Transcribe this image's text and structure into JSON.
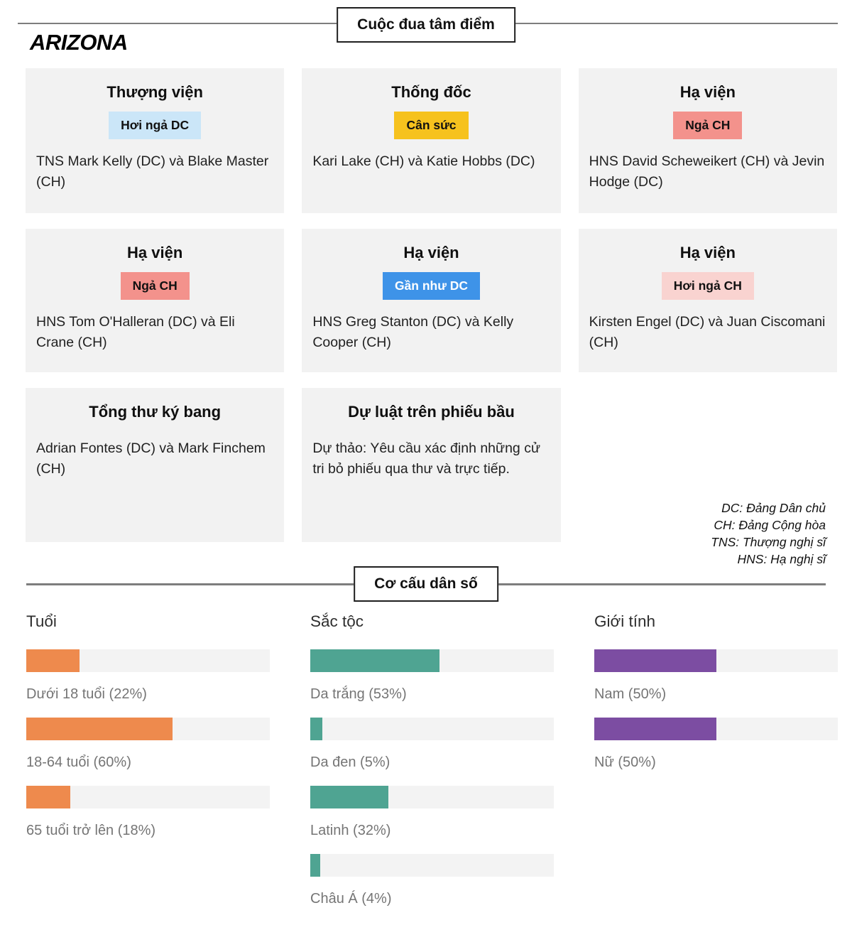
{
  "state": "ARIZONA",
  "races": {
    "title": "Cuộc đua tâm điểm",
    "cards": [
      {
        "title": "Thượng viện",
        "badge": {
          "label": "Hơi ngả DC",
          "bg": "#cbe6f8",
          "fg": "#111111"
        },
        "body": "TNS Mark Kelly (DC) và Blake Master (CH)"
      },
      {
        "title": "Thống đốc",
        "badge": {
          "label": "Cân sức",
          "bg": "#f6c21e",
          "fg": "#111111"
        },
        "body": "Kari Lake (CH) và Katie Hobbs (DC)"
      },
      {
        "title": "Hạ viện",
        "badge": {
          "label": "Ngả CH",
          "bg": "#f3928c",
          "fg": "#111111"
        },
        "body": "HNS David Scheweikert (CH) và Jevin Hodge (DC)"
      },
      {
        "title": "Hạ viện",
        "badge": {
          "label": "Ngả CH",
          "bg": "#f3928c",
          "fg": "#111111"
        },
        "body": "HNS Tom O'Halleran (DC) và Eli Crane (CH)"
      },
      {
        "title": "Hạ viện",
        "badge": {
          "label": "Gần như DC",
          "bg": "#3e93e8",
          "fg": "#ffffff"
        },
        "body": "HNS Greg Stanton (DC) và Kelly Cooper (CH)"
      },
      {
        "title": "Hạ viện",
        "badge": {
          "label": "Hơi ngả CH",
          "bg": "#f9d3d0",
          "fg": "#111111"
        },
        "body": "Kirsten Engel (DC) và Juan Ciscomani (CH)"
      },
      {
        "title": "Tổng thư ký bang",
        "badge": null,
        "body": "Adrian Fontes (DC) và Mark Finchem (CH)"
      },
      {
        "title": "Dự luật trên phiếu bầu",
        "badge": null,
        "body": "Dự thảo: Yêu cầu xác định những cử tri bỏ phiếu qua thư và trực tiếp."
      }
    ],
    "legend": [
      "DC: Đảng Dân chủ",
      "CH: Đảng Cộng hòa",
      "TNS: Thượng nghị sĩ",
      "HNS: Hạ nghị sĩ"
    ]
  },
  "demographics": {
    "title": "Cơ cấu dân số"
  },
  "chart_data": [
    {
      "type": "bar",
      "title": "Tuổi",
      "orientation": "horizontal",
      "unit": "percent",
      "value_range": [
        0,
        100
      ],
      "bar_color": "#ee8a4d",
      "track_color": "#f3f3f3",
      "categories": [
        "Dưới 18 tuổi",
        "18-64 tuổi",
        "65 tuổi trở lên"
      ],
      "values": [
        22,
        60,
        18
      ],
      "labels": [
        "Dưới 18 tuổi (22%)",
        "18-64 tuổi (60%)",
        "65 tuổi trở lên (18%)"
      ]
    },
    {
      "type": "bar",
      "title": "Sắc tộc",
      "orientation": "horizontal",
      "unit": "percent",
      "value_range": [
        0,
        100
      ],
      "bar_color": "#4fa492",
      "track_color": "#f3f3f3",
      "categories": [
        "Da trắng",
        "Da đen",
        "Latinh",
        "Châu Á"
      ],
      "values": [
        53,
        5,
        32,
        4
      ],
      "labels": [
        "Da trắng (53%)",
        "Da đen (5%)",
        "Latinh (32%)",
        "Châu Á (4%)"
      ]
    },
    {
      "type": "bar",
      "title": "Giới tính",
      "orientation": "horizontal",
      "unit": "percent",
      "value_range": [
        0,
        100
      ],
      "bar_color": "#7c4da2",
      "track_color": "#f3f3f3",
      "categories": [
        "Nam",
        "Nữ"
      ],
      "values": [
        50,
        50
      ],
      "labels": [
        "Nam (50%)",
        "Nữ (50%)"
      ]
    }
  ]
}
